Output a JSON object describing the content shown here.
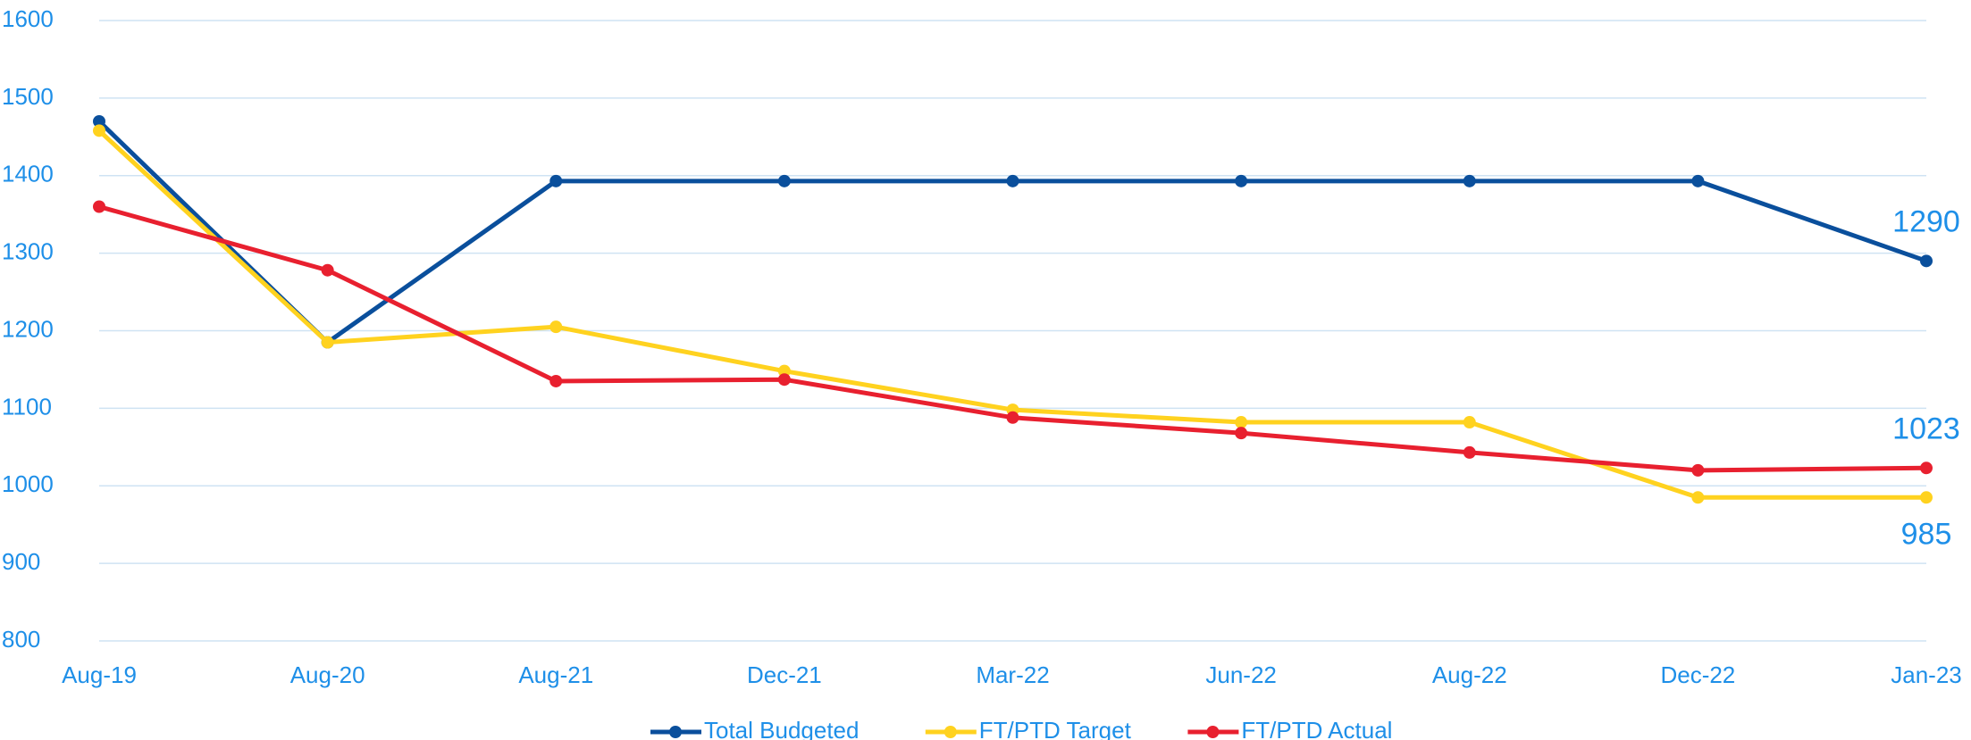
{
  "chart_data": {
    "type": "line",
    "categories": [
      "Aug-19",
      "Aug-20",
      "Aug-21",
      "Dec-21",
      "Mar-22",
      "Jun-22",
      "Aug-22",
      "Dec-22",
      "Jan-23"
    ],
    "series": [
      {
        "name": "Total Budgeted",
        "color": "#0a4f9c",
        "values": [
          1470,
          1185,
          1393,
          1393,
          1393,
          1393,
          1393,
          1393,
          1290
        ]
      },
      {
        "name": "FT/PTD Target",
        "color": "#ffd21f",
        "values": [
          1458,
          1185,
          1205,
          1148,
          1098,
          1082,
          1082,
          985,
          985
        ]
      },
      {
        "name": "FT/PTD Actual",
        "color": "#e8202f",
        "values": [
          1360,
          1278,
          1135,
          1137,
          1088,
          1068,
          1043,
          1020,
          1023
        ]
      }
    ],
    "ylim": [
      800,
      1600
    ],
    "yticks": [
      800,
      900,
      1000,
      1100,
      1200,
      1300,
      1400,
      1500,
      1600
    ],
    "grid": true,
    "legend": "bottom"
  }
}
